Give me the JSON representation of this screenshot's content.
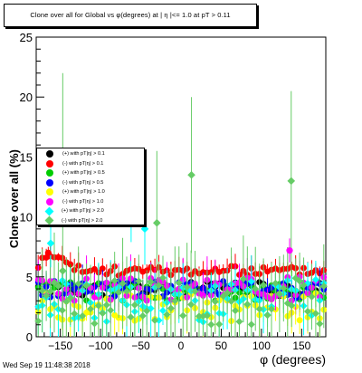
{
  "title": "Clone  over all for Global vs φ(degrees) at | η |<= 1.0 at pT > 0.11",
  "timestamp": "Wed Sep 19 11:48:38 2018",
  "chart_data": {
    "type": "scatter",
    "xlabel": "φ (degrees)",
    "ylabel": "Clone  over all (%)",
    "xlim": [
      -180,
      180
    ],
    "ylim": [
      0,
      25
    ],
    "xticks": [
      -150,
      -100,
      -50,
      0,
      50,
      100,
      150
    ],
    "xtick_labels": [
      "−150",
      "−100",
      "−50",
      "0",
      "50",
      "100",
      "150"
    ],
    "yticks": [
      0,
      5,
      10,
      15,
      20,
      25
    ],
    "grid": false,
    "legend_position": "left",
    "series": [
      {
        "name": "(+) with pT|η| > 0.1",
        "color": "#000000",
        "marker": "circle",
        "base": 4.0,
        "spread": 0.6,
        "err": 1.0,
        "seed": 11
      },
      {
        "name": "(-) with pT|η| > 0.1",
        "color": "#ff0000",
        "marker": "circle",
        "base": 5.5,
        "spread": 0.4,
        "err": 0.8,
        "seed": 23
      },
      {
        "name": "(+) with pT|η| > 0.5",
        "color": "#00cc00",
        "marker": "circle",
        "base": 3.8,
        "spread": 0.8,
        "err": 1.2,
        "seed": 37
      },
      {
        "name": "(-) with pT|η| > 0.5",
        "color": "#0000ff",
        "marker": "circle",
        "base": 4.0,
        "spread": 0.8,
        "err": 1.2,
        "seed": 41
      },
      {
        "name": "(+) with pT|η| > 1.0",
        "color": "#ffff00",
        "marker": "circle",
        "base": 2.5,
        "spread": 1.2,
        "err": 1.5,
        "seed": 53
      },
      {
        "name": "(-) with pT|η| > 1.0",
        "color": "#ff00ff",
        "marker": "circle",
        "base": 4.0,
        "spread": 1.0,
        "err": 1.5,
        "seed": 67
      },
      {
        "name": "(+) with pT|η| > 2.0",
        "color": "#00ffff",
        "marker": "diamond",
        "base": 3.0,
        "spread": 1.8,
        "err": 2.0,
        "seed": 79
      },
      {
        "name": "(-) with pT|η| > 2.0",
        "color": "#66cc66",
        "marker": "diamond",
        "base": 3.0,
        "spread": 2.0,
        "err": 3.5,
        "seed": 97
      }
    ],
    "highlights": [
      {
        "series": 7,
        "x": -147,
        "y": 5.5,
        "err": 16.5
      },
      {
        "series": 7,
        "x": 13,
        "y": 13.5,
        "err": 6.5
      },
      {
        "series": 7,
        "x": 137,
        "y": 13.0,
        "err": 7.5
      },
      {
        "series": 7,
        "x": -30,
        "y": 9.5,
        "err": 6.0
      },
      {
        "series": 6,
        "x": -45,
        "y": 9.0,
        "err": 3.0
      },
      {
        "series": 6,
        "x": -162,
        "y": 7.8,
        "err": 2.0
      },
      {
        "series": 6,
        "x": -62,
        "y": 10.4,
        "err": 2.5
      },
      {
        "series": 5,
        "x": 135,
        "y": 7.2,
        "err": 1.0
      },
      {
        "series": 1,
        "x": -165,
        "y": 7.0,
        "err": 0.5
      }
    ]
  }
}
